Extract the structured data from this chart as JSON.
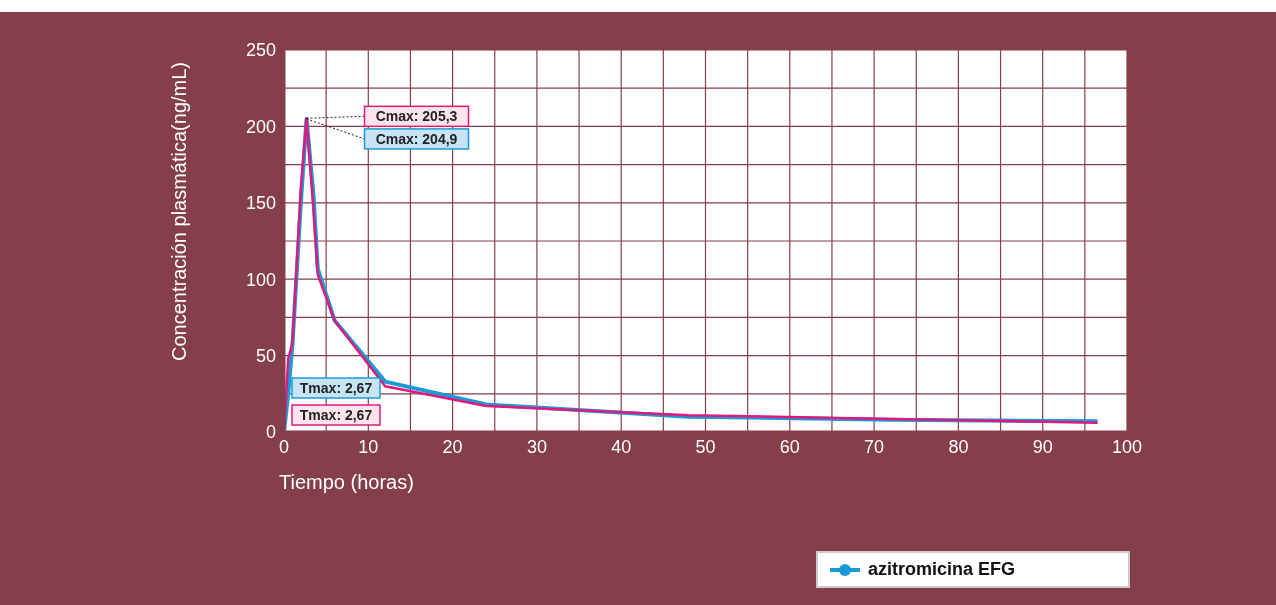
{
  "chart_data": {
    "type": "line",
    "xlabel": "Tiempo (horas)",
    "ylabel": "Concentración plasmática(ng/mL)",
    "xlim": [
      0,
      100
    ],
    "ylim": [
      0,
      250
    ],
    "xticks": [
      0,
      {
        "value": 5,
        "label": null
      },
      10,
      {
        "value": 15,
        "label": null
      },
      20,
      {
        "value": 25,
        "label": null
      },
      30,
      {
        "value": 35,
        "label": null
      },
      40,
      {
        "value": 45,
        "label": null
      },
      50,
      {
        "value": 55,
        "label": null
      },
      60,
      {
        "value": 65,
        "label": null
      },
      70,
      {
        "value": 75,
        "label": null
      },
      80,
      {
        "value": 85,
        "label": null
      },
      90,
      {
        "value": 95,
        "label": null
      },
      100
    ],
    "yticks": [
      0,
      {
        "value": 25,
        "label": null
      },
      50,
      {
        "value": 75,
        "label": null
      },
      100,
      {
        "value": 125,
        "label": null
      },
      150,
      {
        "value": 175,
        "label": null
      },
      200,
      {
        "value": 225,
        "label": null
      },
      250
    ],
    "grid": true,
    "legend": "bottom right",
    "marker": "none",
    "line_style": "solid",
    "series": [
      {
        "name": "azitromicina EFG",
        "color": "#1c9ad6",
        "x": [
          0,
          0.5,
          1,
          2,
          2.67,
          3.5,
          4,
          6,
          12,
          24,
          48,
          72,
          96.5
        ],
        "values": [
          0,
          25,
          57,
          150,
          204.9,
          155,
          107,
          73,
          33,
          18,
          10,
          8,
          7
        ]
      },
      {
        "color": "#e0197d",
        "x": [
          0,
          0.5,
          1,
          2,
          2.67,
          3.5,
          4,
          6,
          12,
          24,
          48,
          72,
          96.5
        ],
        "values": [
          0,
          48,
          58,
          160,
          205.3,
          145,
          103,
          73,
          30,
          17,
          11,
          8.5,
          6
        ]
      }
    ],
    "annotations": [
      {
        "text": "Cmax: 205,3",
        "x": 2.67,
        "y": 205.3
      },
      {
        "text": "Cmax: 204,9",
        "x": 2.67,
        "y": 204.9
      },
      "Tmax: 2,67",
      "Tmax: 2,67"
    ]
  }
}
